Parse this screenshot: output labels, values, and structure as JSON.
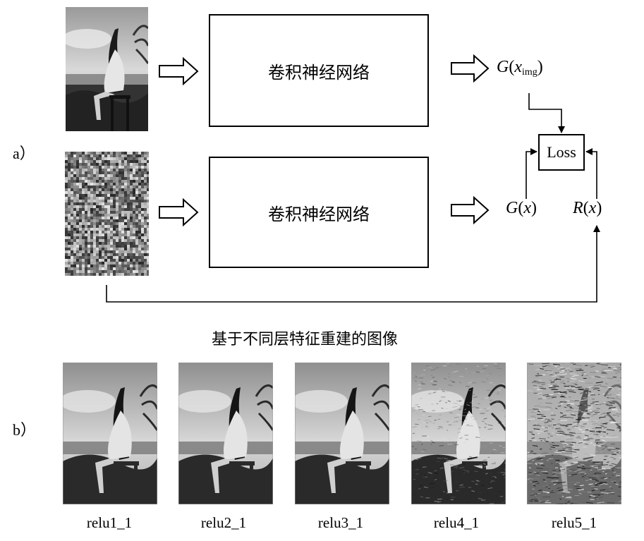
{
  "panel_a": {
    "label": "a）",
    "cnn_top": "卷积神经网络",
    "cnn_bottom": "卷积神经网络",
    "g_img": {
      "fn": "G",
      "open": "(",
      "var": "x",
      "sub": "img",
      "close": ")"
    },
    "loss": "Loss",
    "g_x": {
      "fn": "G",
      "open": "(",
      "var": "x",
      "close": ")"
    },
    "r_x": {
      "fn": "R",
      "open": "(",
      "var": "x",
      "close": ")"
    }
  },
  "panel_b": {
    "label": "b）",
    "heading": "基于不同层特征重建的图像",
    "captions": [
      "relu1_1",
      "relu2_1",
      "relu3_1",
      "relu4_1",
      "relu5_1"
    ]
  },
  "colors": {
    "line": "#000000",
    "photo_sky": "#cfcfcf",
    "photo_dark": "#2a2a2a"
  }
}
